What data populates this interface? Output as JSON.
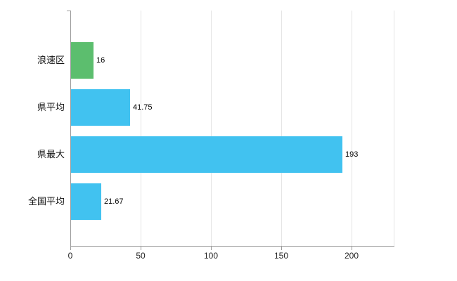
{
  "chart_data": {
    "type": "bar",
    "orientation": "horizontal",
    "title": "",
    "xlabel": "",
    "ylabel": "",
    "categories": [
      "浪速区",
      "県平均",
      "県最大",
      "全国平均"
    ],
    "values": [
      16,
      41.75,
      193,
      21.67
    ],
    "value_labels": [
      "16",
      "41.75",
      "193",
      "21.67"
    ],
    "bar_colors": [
      "#5cbe6e",
      "#41c2f0",
      "#41c2f0",
      "#41c2f0"
    ],
    "x_ticks": [
      0,
      50,
      100,
      150,
      200
    ],
    "x_tick_labels": [
      "0",
      "50",
      "100",
      "150",
      "200"
    ],
    "xlim": [
      0,
      230
    ],
    "grid": true,
    "legend": "none",
    "colors": {
      "axis": "#9b9b9b",
      "grid": "#e5e5e5",
      "background": "#ffffff",
      "text": "#111111"
    }
  }
}
